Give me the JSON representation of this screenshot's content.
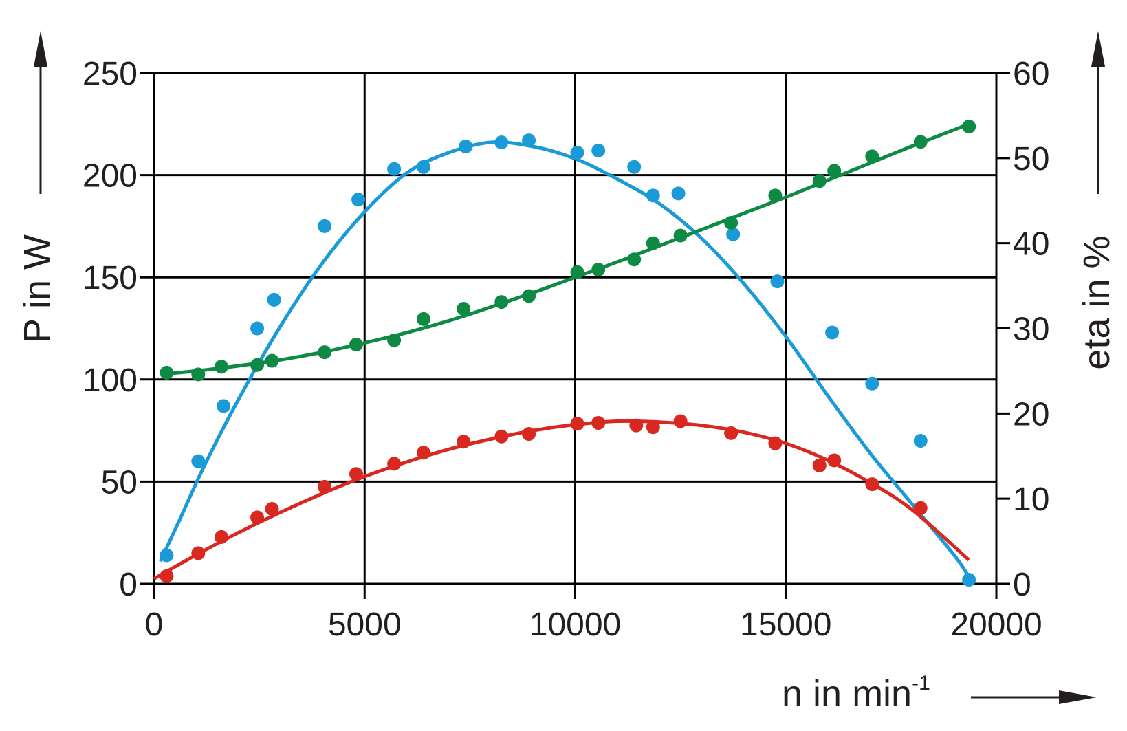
{
  "chart_data": {
    "type": "scatter",
    "title": "",
    "xlabel": "n in min",
    "xlabel_superscript": "-1",
    "ylabel": "P in W",
    "y2label": "eta in %",
    "xlim": [
      0,
      20000
    ],
    "ylim": [
      0,
      250
    ],
    "y2lim": [
      0,
      60
    ],
    "xticks": [
      "0",
      "5000",
      "10000",
      "15000",
      "20000"
    ],
    "yticks": [
      "0",
      "50",
      "100",
      "150",
      "200",
      "250"
    ],
    "y2ticks": [
      "0",
      "10",
      "20",
      "30",
      "40",
      "50",
      "60"
    ],
    "grid": true,
    "series": [
      {
        "axis": "left",
        "color": "#1a9ad7",
        "points": [
          [
            300,
            14
          ],
          [
            1050,
            60
          ],
          [
            1650,
            87
          ],
          [
            2450,
            125
          ],
          [
            2850,
            139
          ],
          [
            4050,
            175
          ],
          [
            4850,
            188
          ],
          [
            5700,
            203
          ],
          [
            6400,
            204
          ],
          [
            7400,
            214
          ],
          [
            8250,
            216
          ],
          [
            8900,
            217
          ],
          [
            10050,
            211
          ],
          [
            10550,
            212
          ],
          [
            11400,
            204
          ],
          [
            11850,
            190
          ],
          [
            12450,
            191
          ],
          [
            13750,
            171
          ],
          [
            14800,
            148
          ],
          [
            16100,
            123
          ],
          [
            17050,
            98
          ],
          [
            18200,
            70
          ],
          [
            19350,
            2
          ]
        ],
        "fit": [
          [
            150,
            11
          ],
          [
            600,
            31
          ],
          [
            1200,
            58
          ],
          [
            2000,
            90
          ],
          [
            3000,
            126
          ],
          [
            4000,
            157
          ],
          [
            5000,
            182
          ],
          [
            6000,
            201
          ],
          [
            7000,
            211
          ],
          [
            8000,
            216
          ],
          [
            9000,
            214
          ],
          [
            10000,
            208
          ],
          [
            11000,
            198
          ],
          [
            12000,
            186
          ],
          [
            13000,
            169
          ],
          [
            14000,
            147
          ],
          [
            15000,
            121
          ],
          [
            16000,
            92
          ],
          [
            17000,
            64
          ],
          [
            18000,
            39
          ],
          [
            19000,
            14
          ],
          [
            19300,
            5
          ]
        ]
      },
      {
        "axis": "right",
        "color": "#0e8a45",
        "points": [
          [
            300,
            24.8
          ],
          [
            1050,
            24.6
          ],
          [
            1600,
            25.5
          ],
          [
            2450,
            25.7
          ],
          [
            2800,
            26.2
          ],
          [
            4050,
            27.2
          ],
          [
            4800,
            28.1
          ],
          [
            5700,
            28.6
          ],
          [
            6400,
            31.1
          ],
          [
            7350,
            32.3
          ],
          [
            8250,
            33.1
          ],
          [
            8900,
            33.8
          ],
          [
            10050,
            36.6
          ],
          [
            10550,
            36.9
          ],
          [
            11400,
            38.1
          ],
          [
            11850,
            40.0
          ],
          [
            12500,
            40.9
          ],
          [
            13700,
            42.4
          ],
          [
            14750,
            45.6
          ],
          [
            15800,
            47.3
          ],
          [
            16150,
            48.5
          ],
          [
            17050,
            50.2
          ],
          [
            18200,
            51.9
          ],
          [
            19350,
            53.7
          ]
        ],
        "fit": [
          [
            150,
            24.6
          ],
          [
            1000,
            25.0
          ],
          [
            2000,
            25.6
          ],
          [
            3000,
            26.3
          ],
          [
            4000,
            27.2
          ],
          [
            5000,
            28.3
          ],
          [
            6000,
            29.5
          ],
          [
            7000,
            30.9
          ],
          [
            8000,
            32.5
          ],
          [
            9000,
            34.2
          ],
          [
            10000,
            36.0
          ],
          [
            11000,
            37.8
          ],
          [
            12000,
            39.7
          ],
          [
            13000,
            41.6
          ],
          [
            14000,
            43.5
          ],
          [
            15000,
            45.4
          ],
          [
            16000,
            47.4
          ],
          [
            17000,
            49.4
          ],
          [
            18000,
            51.4
          ],
          [
            19350,
            54.0
          ]
        ]
      },
      {
        "axis": "right",
        "color": "#d9281f",
        "points": [
          [
            300,
            0.9
          ],
          [
            1050,
            3.6
          ],
          [
            1600,
            5.5
          ],
          [
            2450,
            7.8
          ],
          [
            2800,
            8.8
          ],
          [
            4050,
            11.4
          ],
          [
            4800,
            12.9
          ],
          [
            5700,
            14.1
          ],
          [
            6400,
            15.4
          ],
          [
            7350,
            16.7
          ],
          [
            8250,
            17.3
          ],
          [
            8900,
            17.6
          ],
          [
            10050,
            18.8
          ],
          [
            10550,
            18.9
          ],
          [
            11450,
            18.6
          ],
          [
            11850,
            18.4
          ],
          [
            12500,
            19.1
          ],
          [
            13700,
            17.7
          ],
          [
            14750,
            16.5
          ],
          [
            15800,
            13.9
          ],
          [
            16150,
            14.5
          ],
          [
            17050,
            11.7
          ],
          [
            18200,
            8.9
          ]
        ],
        "fit": [
          [
            0,
            0.6
          ],
          [
            1000,
            3.4
          ],
          [
            2000,
            6.0
          ],
          [
            3000,
            8.4
          ],
          [
            4000,
            10.6
          ],
          [
            5000,
            12.6
          ],
          [
            6000,
            14.3
          ],
          [
            7000,
            15.8
          ],
          [
            8000,
            17.0
          ],
          [
            9000,
            18.0
          ],
          [
            10000,
            18.7
          ],
          [
            11000,
            19.1
          ],
          [
            12000,
            19.0
          ],
          [
            13000,
            18.6
          ],
          [
            14000,
            17.8
          ],
          [
            15000,
            16.5
          ],
          [
            16000,
            14.5
          ],
          [
            17000,
            11.9
          ],
          [
            18000,
            8.7
          ],
          [
            19350,
            2.8
          ]
        ]
      }
    ]
  }
}
